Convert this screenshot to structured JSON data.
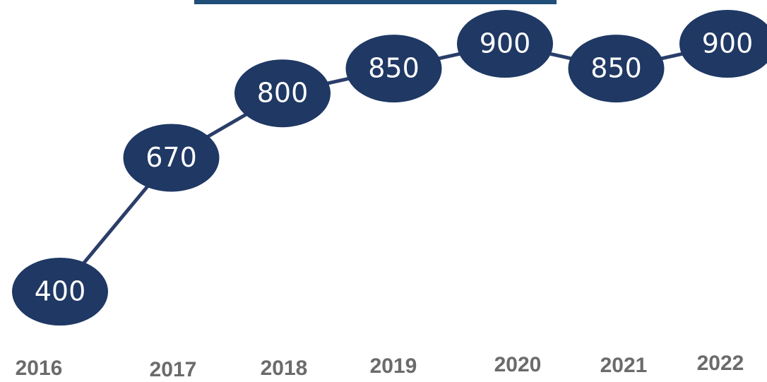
{
  "chart_data": {
    "type": "line",
    "categories": [
      "2016",
      "2017",
      "2018",
      "2019",
      "2020",
      "2021",
      "2022"
    ],
    "values": [
      400,
      670,
      800,
      850,
      900,
      850,
      900
    ],
    "color": "#1f3864"
  }
}
